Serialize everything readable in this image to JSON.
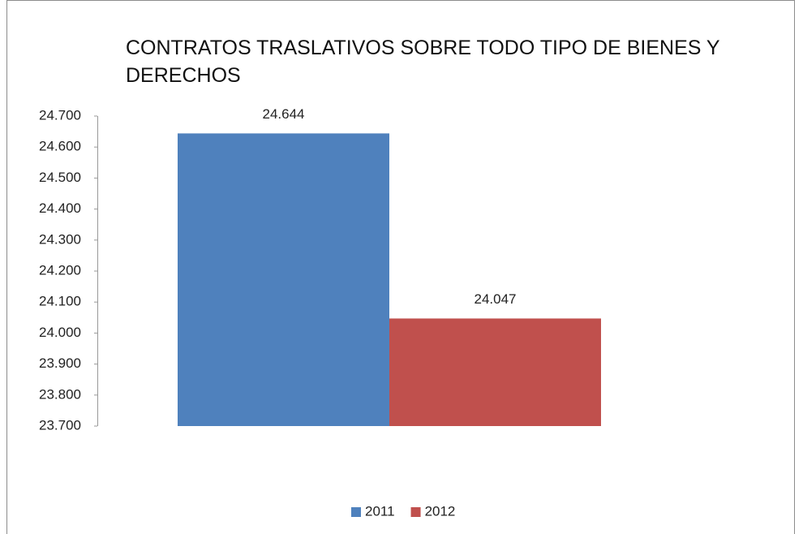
{
  "chart_data": {
    "type": "bar",
    "title": "CONTRATOS TRASLATIVOS SOBRE TODO TIPO DE BIENES Y DERECHOS",
    "categories": [
      null
    ],
    "series": [
      {
        "name": "2011",
        "color": "#4f81bd",
        "values": [
          24644
        ],
        "value_labels": [
          "24.644"
        ]
      },
      {
        "name": "2012",
        "color": "#c0504d",
        "values": [
          24047
        ],
        "value_labels": [
          "24.047"
        ]
      }
    ],
    "ylim": [
      23700,
      24700
    ],
    "yticks": [
      {
        "value": 23700,
        "label": "23.700"
      },
      {
        "value": 23800,
        "label": "23.800"
      },
      {
        "value": 23900,
        "label": "23.900"
      },
      {
        "value": 24000,
        "label": "24.000"
      },
      {
        "value": 24100,
        "label": "24.100"
      },
      {
        "value": 24200,
        "label": "24.200"
      },
      {
        "value": 24300,
        "label": "24.300"
      },
      {
        "value": 24400,
        "label": "24.400"
      },
      {
        "value": 24500,
        "label": "24.500"
      },
      {
        "value": 24600,
        "label": "24.600"
      },
      {
        "value": 24700,
        "label": "24.700"
      }
    ],
    "grid": false,
    "legend": "bottom"
  }
}
